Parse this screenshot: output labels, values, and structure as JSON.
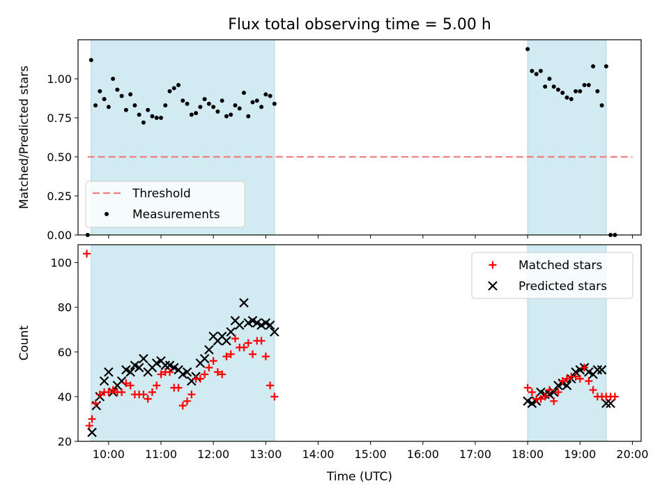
{
  "figure_title": "Flux total observing time = 5.00 h",
  "colors": {
    "shade": "#add8e6",
    "threshold": "#f08080",
    "matched": "#ff0000",
    "predicted": "#000000",
    "measurement": "#000000"
  },
  "chart_data": [
    {
      "type": "scatter",
      "panel": "ratio",
      "title": "Flux total observing time = 5.00 h",
      "xlabel": "",
      "ylabel": "Matched/Predicted stars",
      "xlim": [
        "09:25",
        "20:10"
      ],
      "ylim": [
        0,
        1.25
      ],
      "yticks": [
        0.0,
        0.25,
        0.5,
        0.75,
        1.0
      ],
      "ytick_labels": [
        "0.00",
        "0.25",
        "0.50",
        "0.75",
        "1.00"
      ],
      "grid": false,
      "legend_placement": "lower-left",
      "legend": [
        "Threshold",
        "Measurements"
      ],
      "shaded_intervals": [
        [
          "09:40",
          "13:10"
        ],
        [
          "18:00",
          "19:30"
        ]
      ],
      "threshold": {
        "name": "Threshold",
        "x": [
          "09:36",
          "20:00"
        ],
        "y": 0.5
      },
      "series": [
        {
          "name": "Measurements",
          "x": [
            "09:36",
            "09:40",
            "09:45",
            "09:50",
            "09:55",
            "10:00",
            "10:05",
            "10:10",
            "10:15",
            "10:20",
            "10:25",
            "10:30",
            "10:35",
            "10:40",
            "10:45",
            "10:50",
            "10:55",
            "11:00",
            "11:05",
            "11:10",
            "11:15",
            "11:20",
            "11:25",
            "11:30",
            "11:35",
            "11:40",
            "11:45",
            "11:50",
            "11:55",
            "12:00",
            "12:05",
            "12:10",
            "12:15",
            "12:20",
            "12:25",
            "12:30",
            "12:35",
            "12:40",
            "12:45",
            "12:50",
            "12:55",
            "13:00",
            "13:05",
            "13:10",
            "18:00",
            "18:05",
            "18:10",
            "18:15",
            "18:20",
            "18:25",
            "18:30",
            "18:35",
            "18:40",
            "18:45",
            "18:50",
            "18:55",
            "19:00",
            "19:05",
            "19:10",
            "19:15",
            "19:20",
            "19:25",
            "19:30",
            "19:35",
            "19:40"
          ],
          "y": [
            0.0,
            1.12,
            0.83,
            0.92,
            0.87,
            0.82,
            1.0,
            0.93,
            0.89,
            0.8,
            0.9,
            0.83,
            0.77,
            0.72,
            0.8,
            0.76,
            0.75,
            0.75,
            0.83,
            0.92,
            0.94,
            0.96,
            0.86,
            0.84,
            0.77,
            0.78,
            0.82,
            0.87,
            0.84,
            0.82,
            0.79,
            0.86,
            0.76,
            0.77,
            0.83,
            0.81,
            0.91,
            0.76,
            0.85,
            0.86,
            0.82,
            0.9,
            0.89,
            0.84,
            1.19,
            1.05,
            1.03,
            1.05,
            0.95,
            1.0,
            0.95,
            0.93,
            0.91,
            0.88,
            0.87,
            0.92,
            0.92,
            0.96,
            0.96,
            1.08,
            0.92,
            0.83,
            1.08,
            0.0,
            0.0
          ]
        }
      ]
    },
    {
      "type": "scatter",
      "panel": "count",
      "title": "",
      "xlabel": "Time (UTC)",
      "ylabel": "Count",
      "xlim": [
        "09:25",
        "20:10"
      ],
      "xticks": [
        "10:00",
        "11:00",
        "12:00",
        "13:00",
        "14:00",
        "15:00",
        "16:00",
        "17:00",
        "18:00",
        "19:00",
        "20:00"
      ],
      "ylim": [
        20,
        108
      ],
      "yticks": [
        20,
        40,
        60,
        80,
        100
      ],
      "grid": false,
      "legend_placement": "top-right",
      "legend": [
        "Matched stars",
        "Predicted stars"
      ],
      "shaded_intervals": [
        [
          "09:40",
          "13:10"
        ],
        [
          "18:00",
          "19:30"
        ]
      ],
      "series": [
        {
          "name": "Matched stars",
          "x": [
            "09:35",
            "09:38",
            "09:41",
            "09:45",
            "09:50",
            "09:55",
            "10:00",
            "10:05",
            "10:10",
            "10:15",
            "10:20",
            "10:25",
            "10:30",
            "10:35",
            "10:40",
            "10:45",
            "10:50",
            "10:55",
            "11:00",
            "11:05",
            "11:10",
            "11:15",
            "11:20",
            "11:25",
            "11:30",
            "11:35",
            "11:40",
            "11:45",
            "11:50",
            "11:55",
            "12:00",
            "12:05",
            "12:10",
            "12:15",
            "12:20",
            "12:25",
            "12:30",
            "12:35",
            "12:40",
            "12:45",
            "12:50",
            "12:55",
            "13:00",
            "13:05",
            "13:10",
            "18:00",
            "18:05",
            "18:10",
            "18:15",
            "18:20",
            "18:25",
            "18:30",
            "18:35",
            "18:40",
            "18:45",
            "18:50",
            "18:55",
            "19:00",
            "19:05",
            "19:10",
            "19:15",
            "19:20",
            "19:25",
            "19:30",
            "19:35",
            "19:40"
          ],
          "y": [
            104,
            27,
            30,
            37,
            41,
            42,
            42,
            43,
            42,
            42,
            46,
            45,
            41,
            41,
            41,
            39,
            42,
            45,
            50,
            51,
            51,
            44,
            44,
            36,
            38,
            41,
            48,
            48,
            50,
            53,
            56,
            51,
            50,
            58,
            59,
            66,
            62,
            62,
            64,
            59,
            65,
            65,
            58,
            45,
            40,
            44,
            42,
            39,
            39,
            40,
            43,
            38,
            42,
            47,
            48,
            49,
            49,
            48,
            53,
            47,
            43,
            40,
            40,
            40,
            40,
            40
          ],
          "x_adj": []
        },
        {
          "name": "Predicted stars",
          "x": [
            "09:41",
            "09:46",
            "09:50",
            "09:55",
            "10:00",
            "10:05",
            "10:10",
            "10:15",
            "10:20",
            "10:25",
            "10:30",
            "10:35",
            "10:40",
            "10:45",
            "10:50",
            "10:55",
            "11:00",
            "11:05",
            "11:10",
            "11:15",
            "11:20",
            "11:25",
            "11:30",
            "11:35",
            "11:40",
            "11:45",
            "11:50",
            "11:55",
            "12:00",
            "12:05",
            "12:10",
            "12:15",
            "12:20",
            "12:25",
            "12:30",
            "12:35",
            "12:40",
            "12:45",
            "12:50",
            "12:55",
            "13:00",
            "13:05",
            "13:10",
            "18:00",
            "18:05",
            "18:10",
            "18:15",
            "18:20",
            "18:25",
            "18:30",
            "18:35",
            "18:40",
            "18:45",
            "18:50",
            "18:55",
            "19:00",
            "19:05",
            "19:10",
            "19:15",
            "19:20",
            "19:25",
            "19:30",
            "19:35"
          ],
          "y": [
            24,
            36,
            40,
            47,
            51,
            42,
            45,
            47,
            52,
            51,
            54,
            53,
            57,
            51,
            53,
            55,
            56,
            54,
            54,
            53,
            52,
            50,
            51,
            47,
            49,
            55,
            57,
            61,
            67,
            65,
            67,
            65,
            69,
            74,
            72,
            82,
            73,
            74,
            73,
            72,
            73,
            72,
            69,
            38,
            37,
            38,
            42,
            41,
            41,
            42,
            45,
            46,
            45,
            48,
            51,
            52,
            53,
            51,
            50,
            52,
            52,
            37,
            37
          ]
        }
      ]
    }
  ]
}
